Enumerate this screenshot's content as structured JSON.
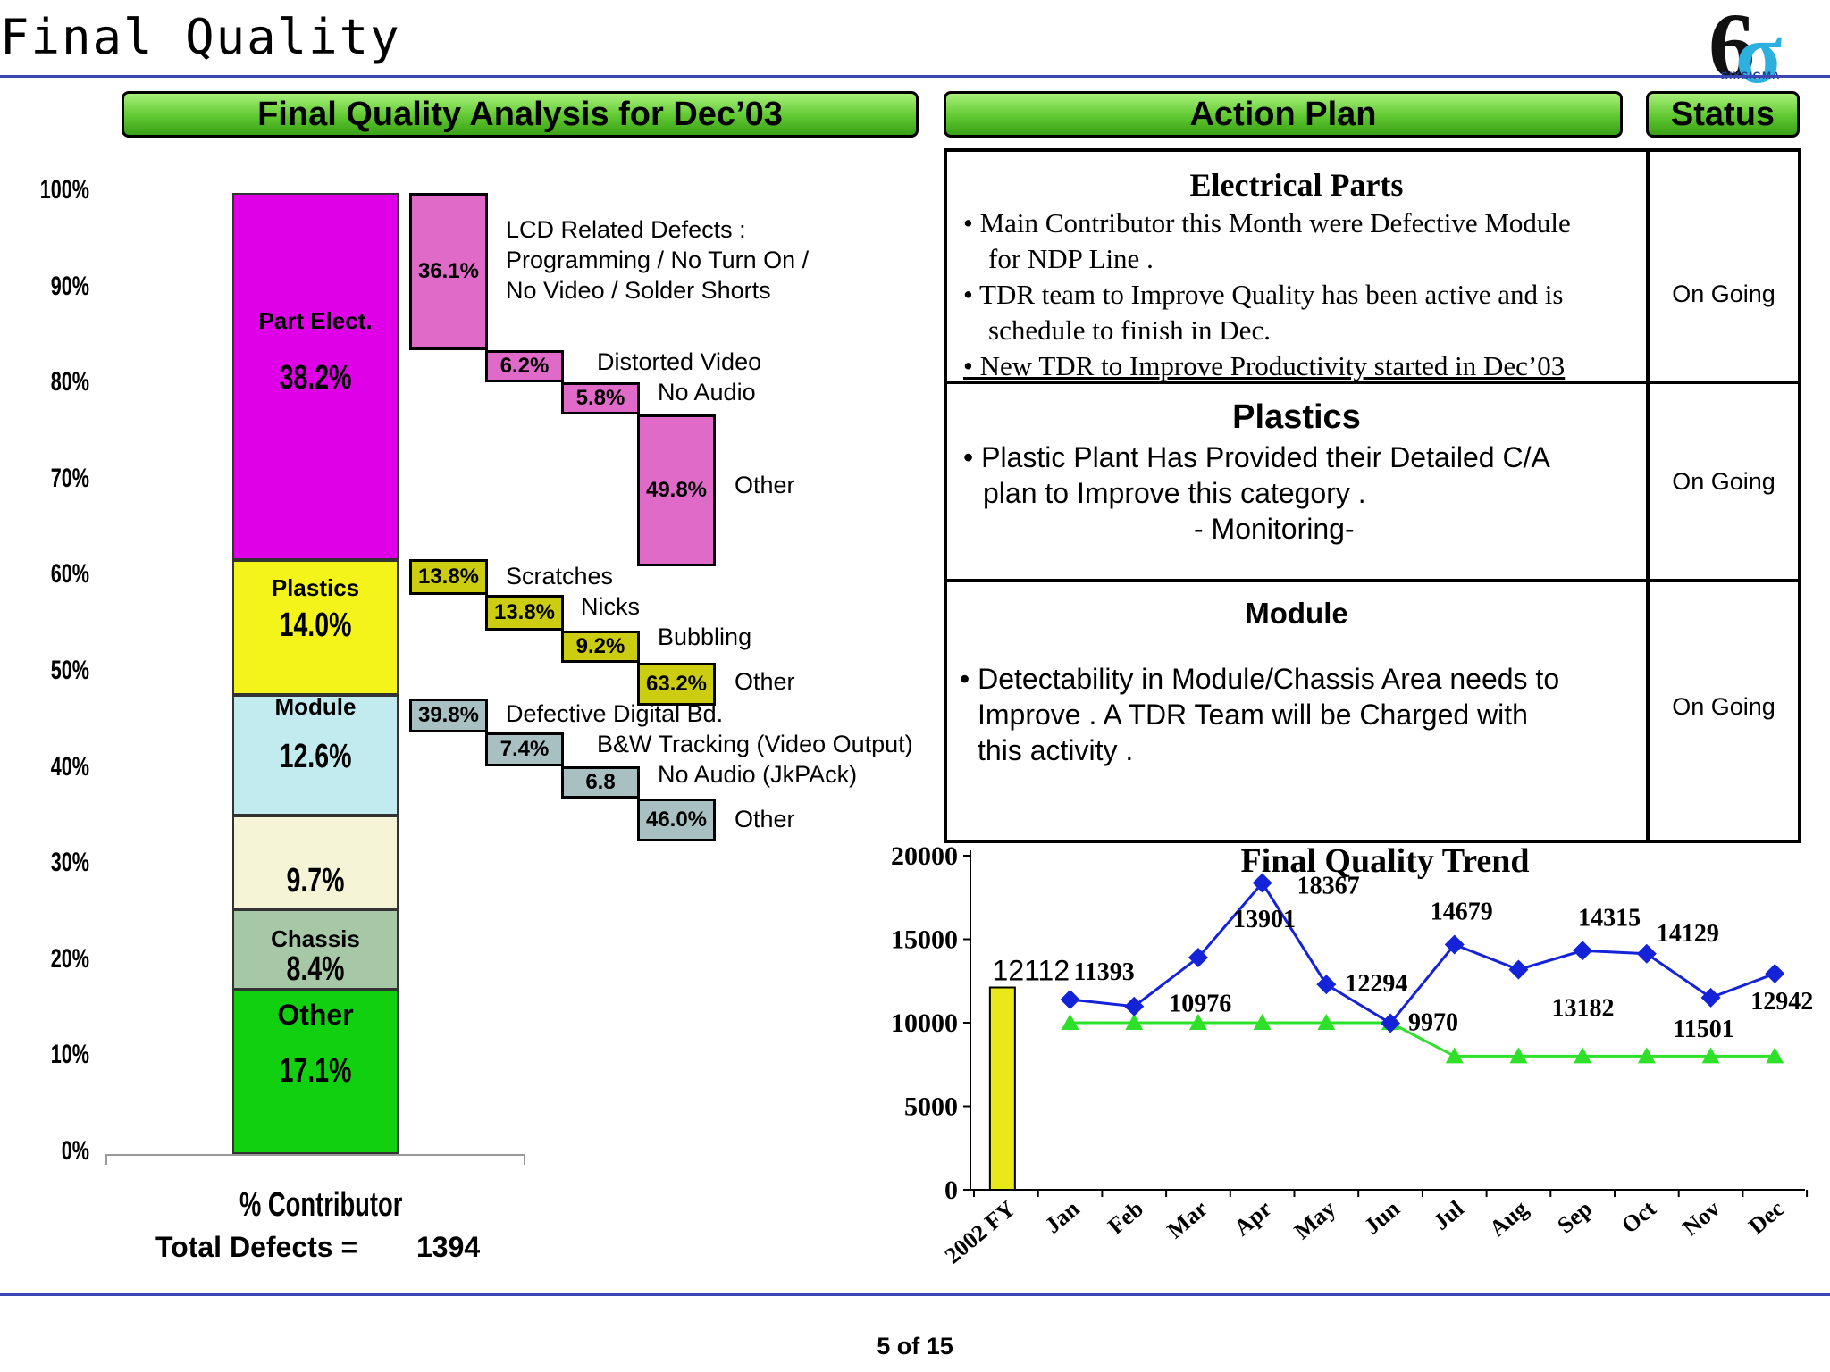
{
  "page": {
    "title": "Final Quality",
    "page_num": "5 of 15",
    "logo_text": "SIXSIGMA"
  },
  "headers": {
    "analysis": "Final Quality  Analysis for Dec’03",
    "action": "Action Plan",
    "status": "Status"
  },
  "colors": {
    "electrical": "#e000e8",
    "plastics": "#f4f41a",
    "module": "#c2ebf0",
    "cream": "#f5f4d6",
    "chassis": "#a7c8a7",
    "other": "#10d010",
    "pink": "#e06ac8",
    "yellow_box": "#cccc10",
    "gray_box": "#a8c0c2",
    "trend_line": "#1422d8",
    "target_line": "#2ee02a",
    "fy_bar": "#e8e81a"
  },
  "left_chart": {
    "y_ticks": [
      "100%",
      "90%",
      "80%",
      "70%",
      "60%",
      "50%",
      "40%",
      "30%",
      "20%",
      "10%",
      "0%"
    ],
    "contributor_label": "% Contributor",
    "total_label": "Total Defects =",
    "total_value": "1394",
    "segments": [
      {
        "key": "other",
        "label": "Other",
        "pct": "17.1%",
        "value": 17.1
      },
      {
        "key": "chassis",
        "label": "Chassis",
        "pct": "8.4%",
        "value": 8.4
      },
      {
        "key": "cream",
        "label": "",
        "pct": "9.7%",
        "value": 9.7
      },
      {
        "key": "module",
        "label": "Module",
        "pct": "12.6%",
        "value": 12.6
      },
      {
        "key": "plastics",
        "label": "Plastics",
        "pct": "14.0%",
        "value": 14.0
      },
      {
        "key": "electrical",
        "label": "Part Elect.",
        "pct": "38.2%",
        "value": 38.2
      }
    ],
    "breakdowns": {
      "electrical": [
        {
          "pct": "36.1%",
          "label": "LCD Related Defects :\nProgramming / No Turn On /\nNo Video / Solder Shorts"
        },
        {
          "pct": "6.2%",
          "label": "Distorted Video"
        },
        {
          "pct": "5.8%",
          "label": "No Audio"
        },
        {
          "pct": "49.8%",
          "label": "Other"
        }
      ],
      "plastics": [
        {
          "pct": "13.8%",
          "label": "Scratches"
        },
        {
          "pct": "13.8%",
          "label": "Nicks"
        },
        {
          "pct": "9.2%",
          "label": "Bubbling"
        },
        {
          "pct": "63.2%",
          "label": "Other"
        }
      ],
      "module": [
        {
          "pct": "39.8%",
          "label": "Defective Digital Bd."
        },
        {
          "pct": "7.4%",
          "label": "B&W Tracking (Video Output)"
        },
        {
          "pct": "6.8",
          "label": "No Audio (JkPAck)"
        },
        {
          "pct": "46.0%",
          "label": "Other"
        }
      ]
    }
  },
  "action_plan": {
    "electrical": {
      "title": "Electrical Parts",
      "lines": [
        "• Main Contributor this Month were Defective  Module",
        "for NDP Line .",
        "• TDR team to Improve Quality has been active and is",
        "schedule to finish in Dec.",
        "• New TDR to Improve Productivity started in Dec’03"
      ],
      "status": "On Going"
    },
    "plastics": {
      "title": "Plastics",
      "lines": [
        "• Plastic Plant Has Provided their Detailed C/A",
        "plan to Improve this category .",
        "- Monitoring-"
      ],
      "status": "On Going"
    },
    "module": {
      "title": "Module",
      "lines": [
        "• Detectability in Module/Chassis Area needs to",
        "Improve . A TDR Team will be Charged with",
        "this activity ."
      ],
      "status": "On Going"
    }
  },
  "chart_data": [
    {
      "type": "bar",
      "title": "",
      "categories": [
        "Part Elect.",
        "Plastics",
        "Module",
        "",
        "Chassis",
        "Other"
      ],
      "values": [
        38.2,
        14.0,
        12.6,
        9.7,
        8.4,
        17.1
      ],
      "xlabel": "% Contributor",
      "ylabel": "",
      "ylim": [
        0,
        100
      ]
    },
    {
      "type": "line",
      "title": "Final Quality Trend",
      "categories": [
        "2002 FY",
        "Jan",
        "Feb",
        "Mar",
        "Apr",
        "May",
        "Jun",
        "Jul",
        "Aug",
        "Sep",
        "Oct",
        "Nov",
        "Dec"
      ],
      "y_ticks": [
        "20000",
        "15000",
        "10000",
        "5000",
        "0"
      ],
      "ylim": [
        0,
        20000
      ],
      "fy_bar": {
        "category": "2002 FY",
        "value": 12112,
        "label": "12112"
      },
      "series": [
        {
          "name": "",
          "values": [
            null,
            11393,
            10976,
            13901,
            18367,
            12294,
            9970,
            14679,
            13182,
            14315,
            14129,
            11501,
            12942
          ]
        },
        {
          "name": "",
          "values": [
            null,
            10000,
            10000,
            10000,
            10000,
            10000,
            10000,
            8000,
            8000,
            8000,
            8000,
            8000,
            8000
          ]
        }
      ],
      "grid": false,
      "legend": "none"
    }
  ]
}
